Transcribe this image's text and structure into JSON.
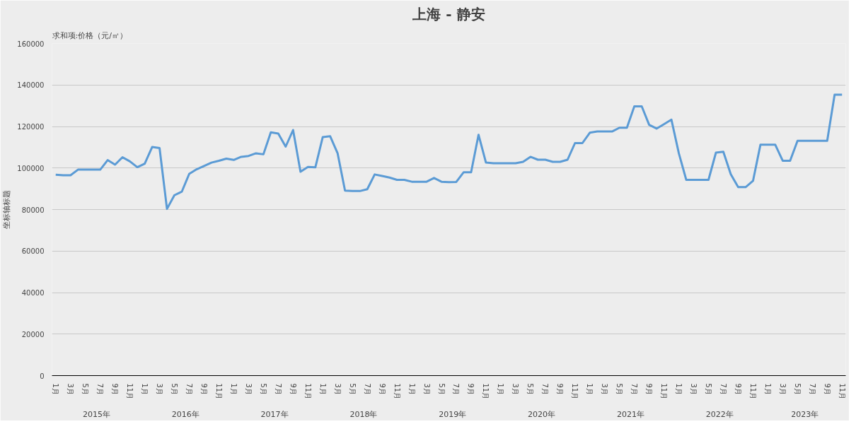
{
  "chart_data": {
    "type": "line",
    "title": "上海 - 静安",
    "ylabel": "坐标轴标题",
    "annotations": [
      "求和项:价格（元/㎡）",
      "2015年",
      "2016年",
      "2017年",
      "2018年",
      "2019年",
      "2020年",
      "2021年",
      "2022年",
      "2023年"
    ],
    "categories": [
      "1月",
      null,
      "3月",
      null,
      "5月",
      null,
      "7月",
      null,
      "9月",
      null,
      "11月",
      null,
      "1月",
      null,
      "3月",
      null,
      "5月",
      null,
      "7月",
      null,
      "9月",
      null,
      "11月",
      null,
      "1月",
      null,
      "3月",
      null,
      "5月",
      null,
      "7月",
      null,
      "9月",
      null,
      "11月",
      null,
      "1月",
      null,
      "3月",
      null,
      "5月",
      null,
      "7月",
      null,
      "9月",
      null,
      "11月",
      null,
      "1月",
      null,
      "3月",
      null,
      "5月",
      null,
      "7月",
      null,
      "9月",
      null,
      "11月",
      null,
      "1月",
      null,
      "3月",
      null,
      "5月",
      null,
      "7月",
      null,
      "9月",
      null,
      "11月",
      null,
      "1月",
      null,
      "3月",
      null,
      "5月",
      null,
      "7月",
      null,
      "9月",
      null,
      "11月",
      null,
      "1月",
      null,
      "3月",
      null,
      "5月",
      null,
      "7月",
      null,
      "9月",
      null,
      "11月",
      null,
      "1月",
      null,
      "3月",
      null,
      "5月",
      null,
      "7月",
      null,
      "9月",
      null,
      "11月"
    ],
    "series": [
      {
        "color": "#5b9bd5",
        "values": [
          96800,
          96500,
          96500,
          99200,
          99200,
          99200,
          99200,
          103800,
          101600,
          105200,
          103200,
          100400,
          102100,
          110100,
          109600,
          80300,
          86900,
          88600,
          97200,
          99400,
          101000,
          102600,
          103500,
          104500,
          103900,
          105400,
          105800,
          107100,
          106600,
          117200,
          116600,
          110300,
          118300,
          98200,
          100500,
          100300,
          114900,
          115300,
          107100,
          89100,
          88900,
          88900,
          89800,
          96900,
          96200,
          95400,
          94300,
          94300,
          93400,
          93400,
          93400,
          95200,
          93400,
          93200,
          93300,
          98000,
          98000,
          116000,
          102600,
          102300,
          102300,
          102300,
          102300,
          103000,
          105400,
          104000,
          104000,
          103000,
          103000,
          104000,
          112000,
          112000,
          117000,
          117600,
          117600,
          117600,
          119400,
          119400,
          129700,
          129700,
          120800,
          119000,
          121100,
          123300,
          107100,
          94300,
          94300,
          94300,
          94300,
          107400,
          107800,
          97000,
          90800,
          90800,
          93800,
          111200,
          111200,
          111200,
          103500,
          103500,
          113100,
          113100,
          113100,
          113100,
          113100,
          135300,
          135300
        ]
      }
    ],
    "ylim": [
      0,
      160000
    ],
    "yticks": [
      0,
      20000,
      40000,
      60000,
      80000,
      100000,
      120000,
      140000,
      160000
    ],
    "grid": "y",
    "marker": "none",
    "line_style": "solid"
  }
}
